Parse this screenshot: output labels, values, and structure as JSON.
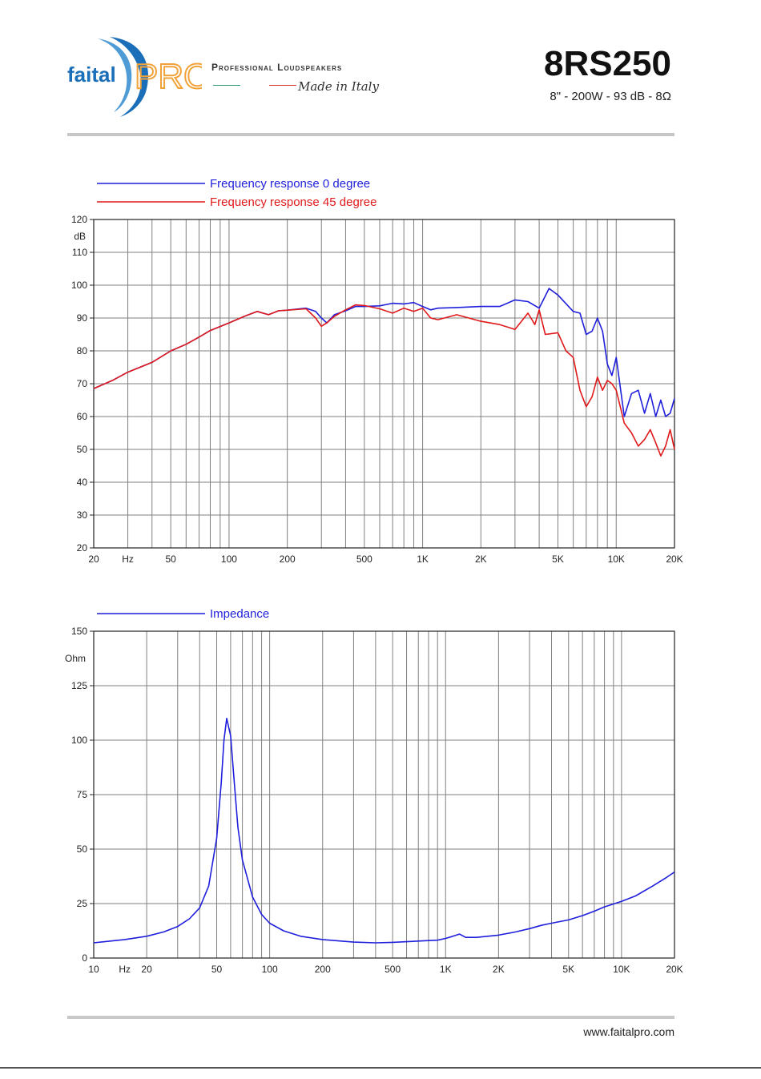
{
  "header": {
    "brand_part1": "faital",
    "brand_part2": "PRO",
    "tagline": "Professional Loudspeakers",
    "tagline2": "Made in Italy",
    "model": "8RS250",
    "specs": "8\" - 200W - 93 dB - 8Ω"
  },
  "footer": {
    "url": "www.faitalpro.com"
  },
  "colors": {
    "blue": "#1f1fdc",
    "red": "#e0191b",
    "logo_blue": "#1b6fb8",
    "logo_orange": "#f1a33a",
    "grid": "#808080"
  },
  "chart_data": [
    {
      "type": "line",
      "xscale": "log",
      "xlim": [
        20,
        20000
      ],
      "ylim": [
        20,
        120
      ],
      "yunit": "dB",
      "xunit": "Hz",
      "x_tick_labels": [
        {
          "v": 20,
          "t": "20"
        },
        {
          "v": 30,
          "t": "Hz"
        },
        {
          "v": 50,
          "t": "50"
        },
        {
          "v": 100,
          "t": "100"
        },
        {
          "v": 200,
          "t": "200"
        },
        {
          "v": 500,
          "t": "500"
        },
        {
          "v": 1000,
          "t": "1K"
        },
        {
          "v": 2000,
          "t": "2K"
        },
        {
          "v": 5000,
          "t": "5K"
        },
        {
          "v": 10000,
          "t": "10K"
        },
        {
          "v": 20000,
          "t": "20K"
        }
      ],
      "y_ticks": [
        20,
        30,
        40,
        50,
        60,
        70,
        80,
        90,
        100,
        110,
        120
      ],
      "y_tick_labels": [
        {
          "v": 20,
          "t": "20"
        },
        {
          "v": 30,
          "t": "30"
        },
        {
          "v": 40,
          "t": "40"
        },
        {
          "v": 50,
          "t": "50"
        },
        {
          "v": 60,
          "t": "60"
        },
        {
          "v": 70,
          "t": "70"
        },
        {
          "v": 80,
          "t": "80"
        },
        {
          "v": 90,
          "t": "90"
        },
        {
          "v": 100,
          "t": "100"
        },
        {
          "v": 110,
          "t": "110"
        },
        {
          "v": 120,
          "t": "120"
        }
      ],
      "unit_label": "dB",
      "series": [
        {
          "name": "Frequency response 0 degree",
          "color": "#1f1fdc",
          "points": [
            [
              20,
              68.5
            ],
            [
              25,
              71
            ],
            [
              30,
              73.5
            ],
            [
              40,
              76.5
            ],
            [
              50,
              80
            ],
            [
              60,
              82
            ],
            [
              70,
              84.2
            ],
            [
              80,
              86.2
            ],
            [
              100,
              88.5
            ],
            [
              120,
              90.5
            ],
            [
              140,
              92
            ],
            [
              160,
              91
            ],
            [
              180,
              92.2
            ],
            [
              200,
              92.4
            ],
            [
              250,
              93
            ],
            [
              280,
              92
            ],
            [
              300,
              90
            ],
            [
              320,
              88.5
            ],
            [
              350,
              91
            ],
            [
              400,
              92.2
            ],
            [
              450,
              93.5
            ],
            [
              500,
              93.5
            ],
            [
              600,
              93.7
            ],
            [
              700,
              94.5
            ],
            [
              800,
              94.3
            ],
            [
              900,
              94.7
            ],
            [
              1000,
              93.5
            ],
            [
              1100,
              92.5
            ],
            [
              1200,
              93
            ],
            [
              1500,
              93.2
            ],
            [
              2000,
              93.5
            ],
            [
              2500,
              93.5
            ],
            [
              3000,
              95.5
            ],
            [
              3500,
              95
            ],
            [
              4000,
              93
            ],
            [
              4500,
              99
            ],
            [
              5000,
              97
            ],
            [
              6000,
              92
            ],
            [
              6500,
              91.5
            ],
            [
              7000,
              85
            ],
            [
              7500,
              86
            ],
            [
              8000,
              90
            ],
            [
              8500,
              86
            ],
            [
              9000,
              76
            ],
            [
              9500,
              72.5
            ],
            [
              10000,
              78
            ],
            [
              11000,
              60
            ],
            [
              12000,
              67
            ],
            [
              13000,
              68
            ],
            [
              14000,
              61
            ],
            [
              15000,
              67
            ],
            [
              16000,
              60
            ],
            [
              17000,
              65
            ],
            [
              18000,
              60
            ],
            [
              19000,
              61
            ],
            [
              20000,
              65.5
            ]
          ]
        },
        {
          "name": "Frequency response 45 degree",
          "color": "#e0191b",
          "points": [
            [
              20,
              68.5
            ],
            [
              25,
              71
            ],
            [
              30,
              73.5
            ],
            [
              40,
              76.5
            ],
            [
              50,
              80
            ],
            [
              60,
              82
            ],
            [
              70,
              84.2
            ],
            [
              80,
              86.2
            ],
            [
              100,
              88.5
            ],
            [
              120,
              90.5
            ],
            [
              140,
              92
            ],
            [
              160,
              91
            ],
            [
              180,
              92.2
            ],
            [
              200,
              92.4
            ],
            [
              250,
              92.8
            ],
            [
              280,
              90
            ],
            [
              300,
              87.5
            ],
            [
              320,
              88.5
            ],
            [
              350,
              90.5
            ],
            [
              400,
              92.5
            ],
            [
              450,
              94
            ],
            [
              500,
              93.8
            ],
            [
              600,
              92.8
            ],
            [
              700,
              91.5
            ],
            [
              800,
              93
            ],
            [
              900,
              92
            ],
            [
              1000,
              93
            ],
            [
              1100,
              90
            ],
            [
              1200,
              89.5
            ],
            [
              1500,
              91
            ],
            [
              2000,
              89
            ],
            [
              2500,
              88
            ],
            [
              3000,
              86.5
            ],
            [
              3500,
              91.5
            ],
            [
              3800,
              88
            ],
            [
              4000,
              92.5
            ],
            [
              4300,
              85
            ],
            [
              5000,
              85.5
            ],
            [
              5500,
              80
            ],
            [
              6000,
              78
            ],
            [
              6500,
              68
            ],
            [
              7000,
              63
            ],
            [
              7500,
              66
            ],
            [
              8000,
              72
            ],
            [
              8500,
              68
            ],
            [
              9000,
              71
            ],
            [
              9500,
              70
            ],
            [
              10000,
              68
            ],
            [
              11000,
              58
            ],
            [
              12000,
              55
            ],
            [
              13000,
              51
            ],
            [
              14000,
              53
            ],
            [
              15000,
              56
            ],
            [
              16000,
              52
            ],
            [
              17000,
              48
            ],
            [
              18000,
              51
            ],
            [
              19000,
              56
            ],
            [
              20000,
              50
            ]
          ]
        }
      ]
    },
    {
      "type": "line",
      "xscale": "log",
      "xlim": [
        10,
        20000
      ],
      "ylim": [
        0,
        150
      ],
      "yunit": "Ohm",
      "xunit": "Hz",
      "x_tick_labels": [
        {
          "v": 10,
          "t": "10"
        },
        {
          "v": 15,
          "t": "Hz"
        },
        {
          "v": 20,
          "t": "20"
        },
        {
          "v": 50,
          "t": "50"
        },
        {
          "v": 100,
          "t": "100"
        },
        {
          "v": 200,
          "t": "200"
        },
        {
          "v": 500,
          "t": "500"
        },
        {
          "v": 1000,
          "t": "1K"
        },
        {
          "v": 2000,
          "t": "2K"
        },
        {
          "v": 5000,
          "t": "5K"
        },
        {
          "v": 10000,
          "t": "10K"
        },
        {
          "v": 20000,
          "t": "20K"
        }
      ],
      "y_ticks": [
        0,
        25,
        50,
        75,
        100,
        125,
        150
      ],
      "y_tick_labels": [
        {
          "v": 0,
          "t": "0"
        },
        {
          "v": 25,
          "t": "25"
        },
        {
          "v": 50,
          "t": "50"
        },
        {
          "v": 75,
          "t": "75"
        },
        {
          "v": 100,
          "t": "100"
        },
        {
          "v": 125,
          "t": "125"
        },
        {
          "v": 150,
          "t": "150"
        }
      ],
      "unit_label": "Ohm",
      "series": [
        {
          "name": "Impedance",
          "color": "#1f1fdc",
          "points": [
            [
              10,
              7
            ],
            [
              15,
              8.5
            ],
            [
              20,
              10
            ],
            [
              25,
              12
            ],
            [
              30,
              14.5
            ],
            [
              35,
              18
            ],
            [
              40,
              23
            ],
            [
              45,
              33
            ],
            [
              50,
              55
            ],
            [
              53,
              80
            ],
            [
              55,
              100
            ],
            [
              57,
              110
            ],
            [
              60,
              102
            ],
            [
              63,
              80
            ],
            [
              66,
              60
            ],
            [
              70,
              45
            ],
            [
              80,
              28
            ],
            [
              90,
              20
            ],
            [
              100,
              16
            ],
            [
              120,
              12.5
            ],
            [
              150,
              10
            ],
            [
              200,
              8.5
            ],
            [
              300,
              7.3
            ],
            [
              400,
              7
            ],
            [
              500,
              7.2
            ],
            [
              600,
              7.5
            ],
            [
              700,
              7.8
            ],
            [
              800,
              8
            ],
            [
              900,
              8.2
            ],
            [
              1000,
              9
            ],
            [
              1100,
              10
            ],
            [
              1200,
              11
            ],
            [
              1300,
              9.5
            ],
            [
              1500,
              9.5
            ],
            [
              2000,
              10.5
            ],
            [
              2500,
              12
            ],
            [
              3000,
              13.5
            ],
            [
              3500,
              15
            ],
            [
              4000,
              16
            ],
            [
              5000,
              17.5
            ],
            [
              6000,
              19.5
            ],
            [
              7000,
              21.5
            ],
            [
              8000,
              23.5
            ],
            [
              10000,
              26
            ],
            [
              12000,
              28.5
            ],
            [
              15000,
              33
            ],
            [
              18000,
              37
            ],
            [
              20000,
              39.5
            ]
          ]
        }
      ]
    }
  ]
}
